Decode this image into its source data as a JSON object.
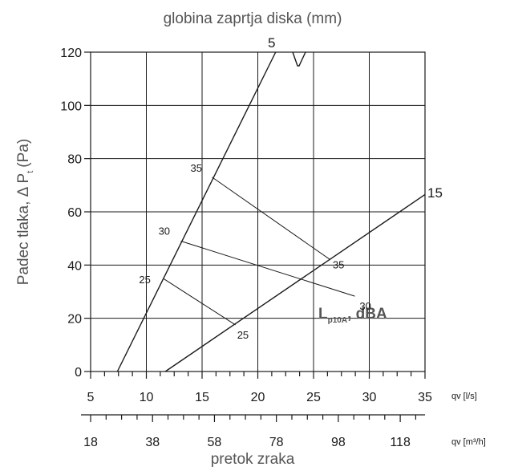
{
  "chart_data": {
    "type": "line",
    "title": "globina zaprtja diska (mm)",
    "xlabel": "pretok zraka",
    "ylabel": "Padec tlaka, Δ P",
    "ylabel_sub": "t",
    "ylabel_unit": "(Pa)",
    "x_unit": "qv [l/s]",
    "x2_unit": "qv [m³/h]",
    "xlim": [
      5,
      35
    ],
    "ylim": [
      0,
      120
    ],
    "x_ticks": [
      "5",
      "10",
      "15",
      "20",
      "25",
      "30",
      "35"
    ],
    "x2_ticks": [
      "18",
      "38",
      "58",
      "78",
      "98",
      "118"
    ],
    "y_ticks": [
      "0",
      "20",
      "40",
      "60",
      "80",
      "100",
      "120"
    ],
    "grid": true,
    "curves": [
      {
        "label": "5",
        "x": [
          7.4,
          21.6
        ],
        "y": [
          0,
          120
        ]
      },
      {
        "label": "15",
        "x": [
          11.7,
          35
        ],
        "y": [
          0,
          66.5
        ]
      }
    ],
    "sound_label": "L",
    "sound_label_sub": "p10A",
    "sound_label_unit": ", dBA",
    "sound_lines": [
      {
        "label_a": "25",
        "label_b": "25",
        "x": [
          11.5,
          18
        ],
        "y": [
          35,
          17.5
        ]
      },
      {
        "label_a": "30",
        "label_b": "30",
        "x": [
          13.1,
          28.7
        ],
        "y": [
          49,
          28.3
        ]
      },
      {
        "label_a": "35",
        "label_b": "35",
        "x": [
          15.9,
          26.5
        ],
        "y": [
          73,
          42
        ]
      }
    ]
  }
}
